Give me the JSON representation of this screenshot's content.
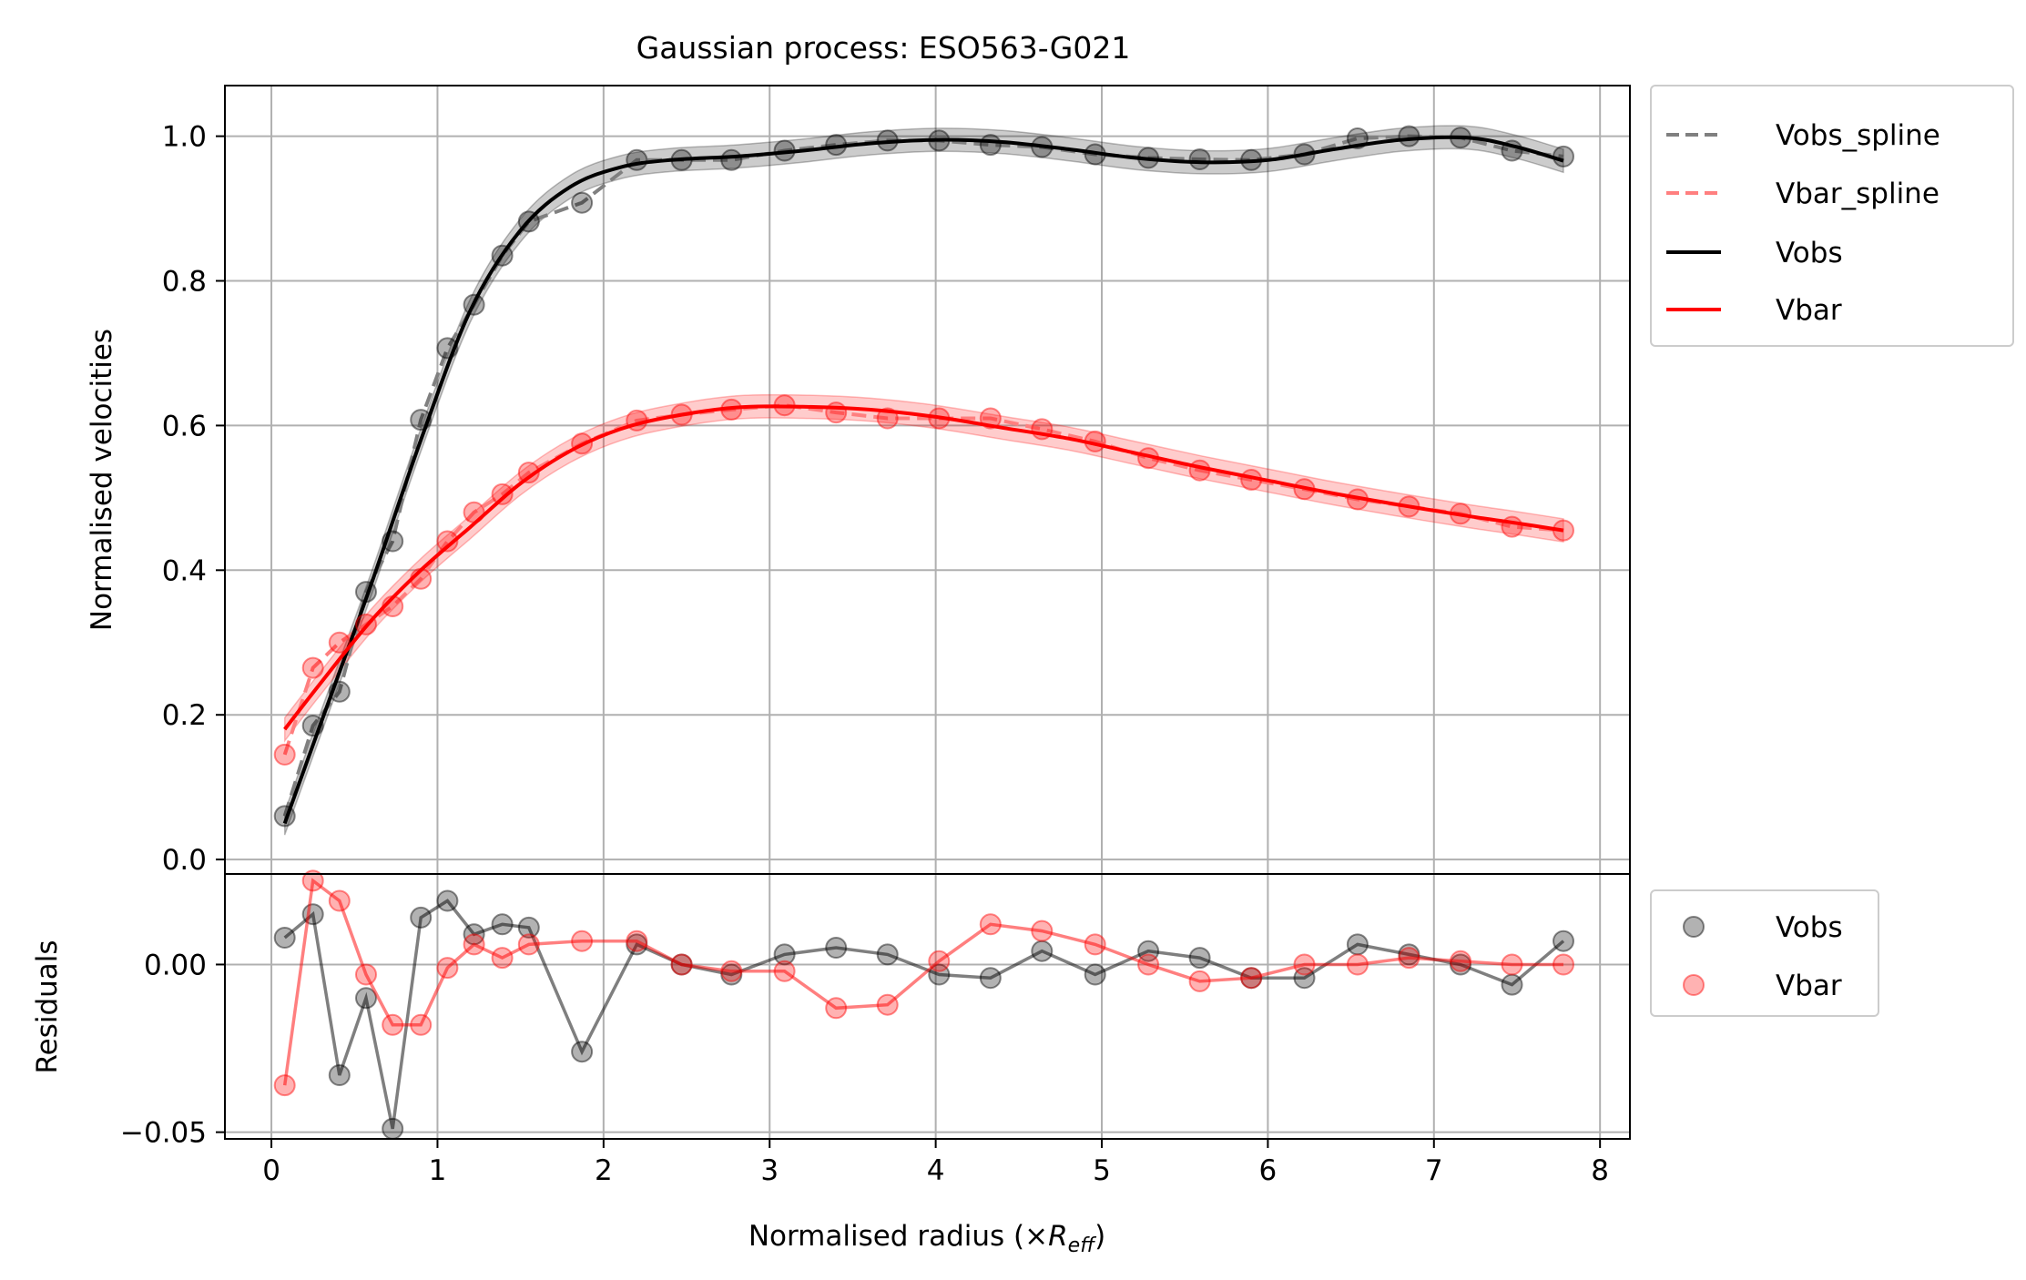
{
  "chart_data": {
    "type": "line",
    "title": "Gaussian process: ESO563-G021",
    "xlabel": "Normalised radius (×",
    "xlabel_sub_base": "R",
    "xlabel_sub": "eff",
    "xlabel_close": ")",
    "ylabel_main": "Normalised velocities",
    "ylabel_resid": "Residuals",
    "xlim": [
      -0.28,
      8.18
    ],
    "ylim_main": [
      -0.02,
      1.07
    ],
    "ylim_resid": [
      -0.052,
      0.027
    ],
    "xticks": [
      0,
      1,
      2,
      3,
      4,
      5,
      6,
      7,
      8
    ],
    "xtick_labels": [
      "0",
      "1",
      "2",
      "3",
      "4",
      "5",
      "6",
      "7",
      "8"
    ],
    "yticks_main": [
      0.0,
      0.2,
      0.4,
      0.6,
      0.8,
      1.0
    ],
    "ytick_labels_main": [
      "0.0",
      "0.2",
      "0.4",
      "0.6",
      "0.8",
      "1.0"
    ],
    "yticks_resid": [
      0.0,
      -0.05
    ],
    "ytick_labels_resid": [
      "0.00",
      "−0.05"
    ],
    "grid": true,
    "legend_main": {
      "placement": "outside-top-right",
      "entries": [
        "Vobs_spline",
        "Vbar_spline",
        "Vobs",
        "Vbar"
      ]
    },
    "legend_resid": {
      "placement": "outside-right",
      "entries": [
        "Vobs",
        "Vbar"
      ]
    },
    "colors": {
      "vobs": "#000000",
      "vbar": "#ff0000",
      "vobs_spline": "#808080",
      "vbar_spline": "#ff7f7f",
      "grid": "#b0b0b0"
    },
    "x": [
      0.08,
      0.25,
      0.41,
      0.57,
      0.73,
      0.9,
      1.06,
      1.22,
      1.39,
      1.55,
      1.87,
      2.2,
      2.47,
      2.77,
      3.09,
      3.4,
      3.71,
      4.02,
      4.33,
      4.64,
      4.96,
      5.28,
      5.59,
      5.9,
      6.22,
      6.54,
      6.85,
      7.16,
      7.47,
      7.78
    ],
    "series": [
      {
        "name": "Vobs",
        "points": [
          0.06,
          0.185,
          0.232,
          0.37,
          0.44,
          0.608,
          0.707,
          0.767,
          0.835,
          0.882,
          0.908,
          0.967,
          0.967,
          0.967,
          0.98,
          0.988,
          0.994,
          0.994,
          0.988,
          0.985,
          0.975,
          0.97,
          0.968,
          0.967,
          0.975,
          0.997,
          1.0,
          0.998,
          0.98,
          0.972
        ],
        "gp_curve_x": [
          0.08,
          0.3,
          0.6,
          0.9,
          1.2,
          1.5,
          1.8,
          2.1,
          2.4,
          2.8,
          3.2,
          3.6,
          4.0,
          4.4,
          4.8,
          5.2,
          5.6,
          6.0,
          6.4,
          6.8,
          7.2,
          7.5,
          7.78
        ],
        "gp_curve_y": [
          0.05,
          0.19,
          0.38,
          0.58,
          0.76,
          0.87,
          0.93,
          0.957,
          0.967,
          0.972,
          0.98,
          0.99,
          0.995,
          0.992,
          0.982,
          0.97,
          0.964,
          0.967,
          0.982,
          0.995,
          0.998,
          0.985,
          0.966
        ],
        "residuals": [
          0.008,
          0.015,
          -0.033,
          -0.01,
          -0.049,
          0.014,
          0.019,
          0.009,
          0.012,
          0.011,
          -0.026,
          0.006,
          0.0,
          -0.003,
          0.003,
          0.005,
          0.003,
          -0.003,
          -0.004,
          0.004,
          -0.003,
          0.004,
          0.002,
          -0.004,
          -0.004,
          0.006,
          0.003,
          0.0,
          -0.006,
          0.007
        ]
      },
      {
        "name": "Vbar",
        "points": [
          0.145,
          0.265,
          0.3,
          0.325,
          0.35,
          0.388,
          0.44,
          0.48,
          0.505,
          0.535,
          0.575,
          0.607,
          0.615,
          0.622,
          0.628,
          0.618,
          0.61,
          0.61,
          0.61,
          0.595,
          0.578,
          0.555,
          0.538,
          0.525,
          0.512,
          0.498,
          0.488,
          0.478,
          0.46,
          0.455
        ],
        "gp_curve_x": [
          0.08,
          0.3,
          0.6,
          0.9,
          1.2,
          1.5,
          1.8,
          2.1,
          2.4,
          2.8,
          3.2,
          3.6,
          4.0,
          4.4,
          4.8,
          5.2,
          5.6,
          6.0,
          6.4,
          6.8,
          7.2,
          7.5,
          7.78
        ],
        "gp_curve_y": [
          0.18,
          0.245,
          0.33,
          0.4,
          0.46,
          0.52,
          0.565,
          0.595,
          0.612,
          0.625,
          0.626,
          0.622,
          0.612,
          0.597,
          0.582,
          0.562,
          0.542,
          0.524,
          0.506,
          0.49,
          0.475,
          0.465,
          0.455
        ],
        "residuals": [
          -0.036,
          0.025,
          0.019,
          -0.003,
          -0.018,
          -0.018,
          -0.001,
          0.006,
          0.002,
          0.006,
          0.007,
          0.007,
          0.0,
          -0.002,
          -0.002,
          -0.013,
          -0.012,
          0.001,
          0.012,
          0.01,
          0.006,
          0.0,
          -0.005,
          -0.004,
          0.0,
          0.0,
          0.002,
          0.001,
          0.0,
          0.0
        ]
      }
    ]
  }
}
